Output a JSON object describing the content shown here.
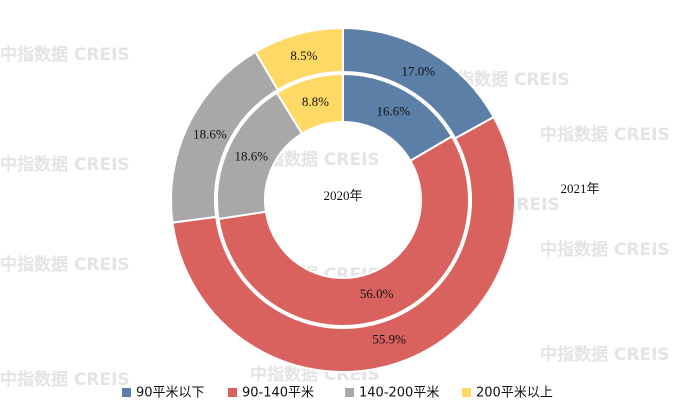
{
  "chart_data": {
    "type": "donut",
    "watermark": "中指数据 CREIS",
    "categories": [
      "90平米以下",
      "90-140平米",
      "140-200平米",
      "200平米以上"
    ],
    "colors": [
      "#5b7fa6",
      "#d9625f",
      "#a9a7a7",
      "#ffd966"
    ],
    "series": [
      {
        "name": "2020年",
        "values": [
          16.6,
          56.0,
          18.6,
          8.8
        ],
        "value_labels": [
          "16.6%",
          "56.0%",
          "18.6%",
          "8.8%"
        ]
      },
      {
        "name": "2021年",
        "values": [
          17.0,
          55.9,
          18.6,
          8.5
        ],
        "value_labels": [
          "17.0%",
          "55.9%",
          "18.6%",
          "8.5%"
        ]
      }
    ]
  }
}
